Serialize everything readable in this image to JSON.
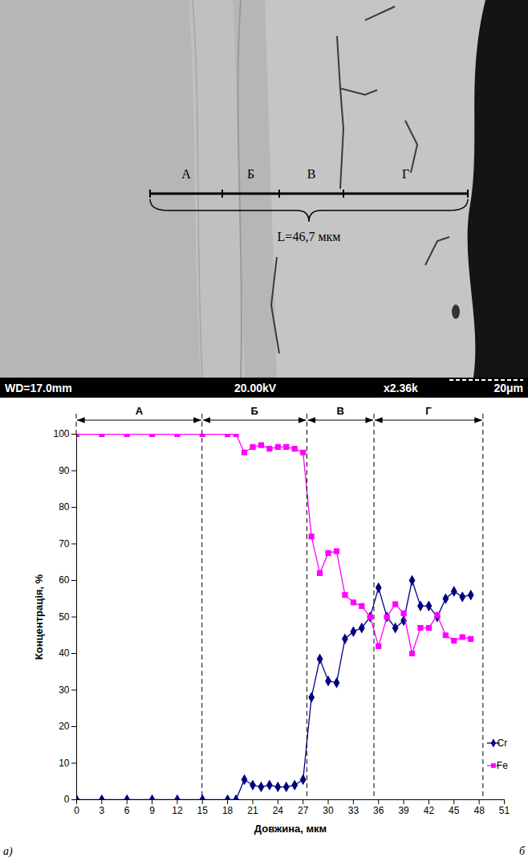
{
  "micrograph": {
    "segments": [
      "А",
      "Б",
      "В",
      "Г"
    ],
    "length_label": "L=46,7 мкм",
    "info_bar": {
      "working_distance": "WD=17.0mm",
      "voltage": "20.00kV",
      "magnification": "x2.36k",
      "scale_bar": "20μm"
    }
  },
  "chart_data": {
    "type": "line",
    "x_label": "Довжина, мкм",
    "y_label": "Концентрація, %",
    "x": [
      0,
      3,
      6,
      9,
      12,
      15,
      18,
      19,
      20,
      21,
      22,
      23,
      24,
      25,
      26,
      27,
      28,
      29,
      30,
      31,
      32,
      33,
      34,
      35,
      36,
      37,
      38,
      39,
      40,
      41,
      42,
      43,
      44,
      45,
      46,
      47
    ],
    "series": [
      {
        "name": "Cr",
        "color": "#000080",
        "marker": "diamond",
        "values": [
          0,
          0,
          0,
          0,
          0,
          0,
          0,
          0,
          5.5,
          4,
          3.5,
          4,
          3.5,
          3.5,
          4,
          5.5,
          28,
          38.5,
          32.5,
          32,
          44,
          46,
          47,
          50,
          58,
          50,
          47,
          49,
          60,
          53,
          53,
          50,
          55,
          57,
          55.5,
          56
        ]
      },
      {
        "name": "Fe",
        "color": "#ff00ff",
        "marker": "square",
        "values": [
          100,
          100,
          100,
          100,
          100,
          100,
          100,
          100,
          95,
          96.5,
          97,
          96,
          96.5,
          96.5,
          96,
          95,
          72,
          62,
          67.5,
          68,
          56,
          54,
          53,
          50,
          42,
          50,
          53.5,
          51,
          40,
          47,
          47,
          50.5,
          45,
          43.5,
          44.5,
          44
        ]
      }
    ],
    "xlim": [
      0,
      51
    ],
    "xticks": [
      0,
      3,
      6,
      9,
      12,
      15,
      18,
      21,
      24,
      27,
      30,
      33,
      36,
      39,
      42,
      45,
      48,
      51
    ],
    "ylim": [
      0,
      100
    ],
    "yticks": [
      0,
      10,
      20,
      30,
      40,
      50,
      60,
      70,
      80,
      90,
      100
    ],
    "grid": false,
    "legend": "lower right",
    "zones": [
      {
        "label": "А",
        "from": 0,
        "to": 15
      },
      {
        "label": "Б",
        "from": 15,
        "to": 27.5
      },
      {
        "label": "В",
        "from": 27.5,
        "to": 35.5
      },
      {
        "label": "Г",
        "from": 35.5,
        "to": 48.5
      }
    ]
  },
  "panel_labels": [
    "а)",
    "б"
  ]
}
